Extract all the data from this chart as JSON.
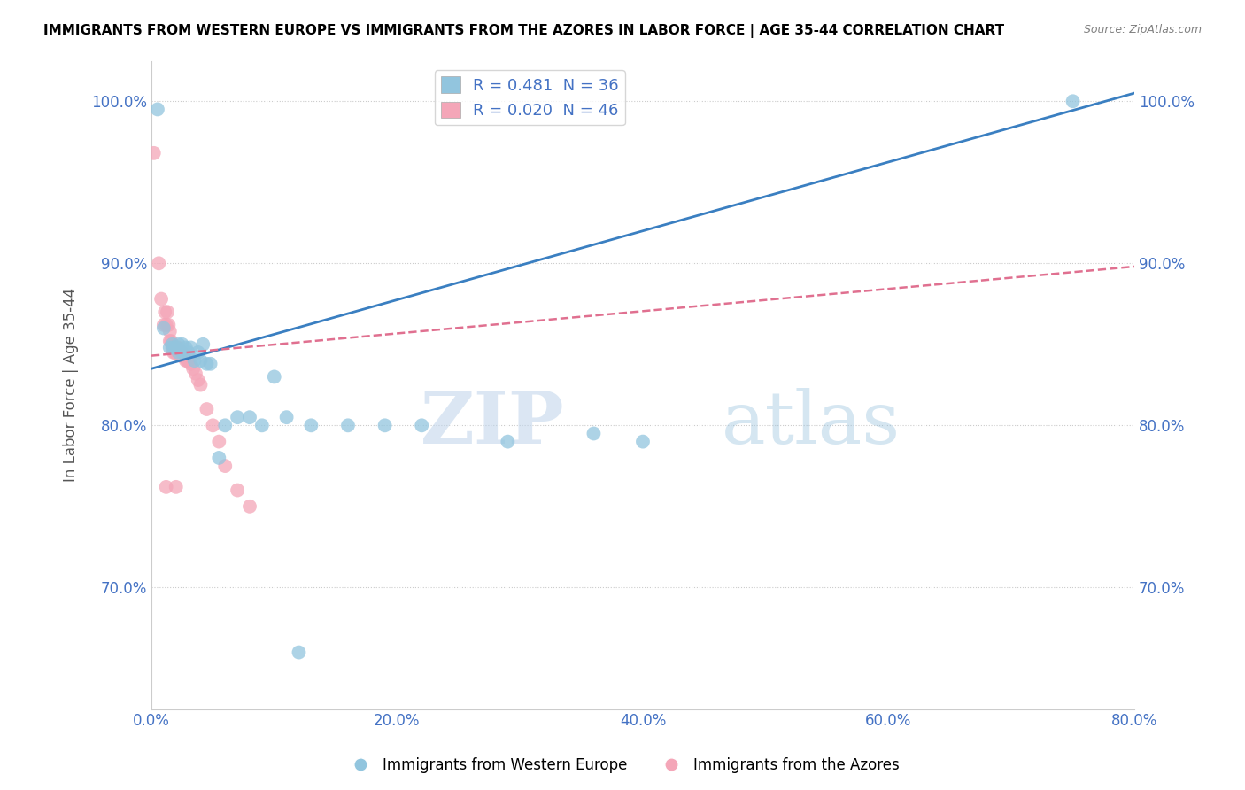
{
  "title": "IMMIGRANTS FROM WESTERN EUROPE VS IMMIGRANTS FROM THE AZORES IN LABOR FORCE | AGE 35-44 CORRELATION CHART",
  "source": "Source: ZipAtlas.com",
  "xlabel": "",
  "ylabel": "In Labor Force | Age 35-44",
  "xlim": [
    0.0,
    0.8
  ],
  "ylim": [
    0.625,
    1.025
  ],
  "xticks": [
    0.0,
    0.2,
    0.4,
    0.6,
    0.8
  ],
  "xtick_labels": [
    "0.0%",
    "20.0%",
    "40.0%",
    "60.0%",
    "80.0%"
  ],
  "yticks": [
    0.7,
    0.8,
    0.9,
    1.0
  ],
  "ytick_labels": [
    "70.0%",
    "80.0%",
    "90.0%",
    "100.0%"
  ],
  "blue_R": 0.481,
  "blue_N": 36,
  "pink_R": 0.02,
  "pink_N": 46,
  "blue_color": "#92c5de",
  "pink_color": "#f4a6b8",
  "blue_line_color": "#3a7fc1",
  "pink_line_color": "#e07090",
  "watermark_zip": "ZIP",
  "watermark_atlas": "atlas",
  "blue_line_x0": 0.0,
  "blue_line_y0": 0.835,
  "blue_line_x1": 0.8,
  "blue_line_y1": 1.005,
  "pink_line_x0": 0.0,
  "pink_line_y0": 0.843,
  "pink_line_x1": 0.8,
  "pink_line_y1": 0.898,
  "blue_scatter_x": [
    0.005,
    0.01,
    0.015,
    0.017,
    0.018,
    0.02,
    0.022,
    0.022,
    0.025,
    0.025,
    0.027,
    0.028,
    0.03,
    0.032,
    0.035,
    0.038,
    0.04,
    0.042,
    0.045,
    0.048,
    0.055,
    0.06,
    0.07,
    0.08,
    0.09,
    0.1,
    0.11,
    0.13,
    0.16,
    0.19,
    0.22,
    0.29,
    0.36,
    0.4,
    0.75,
    0.12
  ],
  "blue_scatter_y": [
    0.995,
    0.86,
    0.848,
    0.85,
    0.848,
    0.848,
    0.845,
    0.85,
    0.845,
    0.85,
    0.845,
    0.848,
    0.845,
    0.848,
    0.84,
    0.845,
    0.84,
    0.85,
    0.838,
    0.838,
    0.78,
    0.8,
    0.805,
    0.805,
    0.8,
    0.83,
    0.805,
    0.8,
    0.8,
    0.8,
    0.8,
    0.79,
    0.795,
    0.79,
    1.0,
    0.66
  ],
  "pink_scatter_x": [
    0.002,
    0.006,
    0.008,
    0.01,
    0.011,
    0.012,
    0.013,
    0.014,
    0.015,
    0.015,
    0.016,
    0.017,
    0.017,
    0.018,
    0.018,
    0.019,
    0.019,
    0.02,
    0.02,
    0.021,
    0.021,
    0.022,
    0.022,
    0.023,
    0.023,
    0.024,
    0.025,
    0.025,
    0.026,
    0.027,
    0.028,
    0.029,
    0.03,
    0.032,
    0.034,
    0.036,
    0.038,
    0.04,
    0.045,
    0.05,
    0.055,
    0.06,
    0.07,
    0.08,
    0.012,
    0.02
  ],
  "pink_scatter_y": [
    0.968,
    0.9,
    0.878,
    0.862,
    0.87,
    0.862,
    0.87,
    0.862,
    0.858,
    0.852,
    0.852,
    0.848,
    0.85,
    0.848,
    0.845,
    0.848,
    0.845,
    0.848,
    0.845,
    0.845,
    0.848,
    0.845,
    0.848,
    0.845,
    0.845,
    0.843,
    0.843,
    0.845,
    0.843,
    0.843,
    0.84,
    0.84,
    0.84,
    0.838,
    0.835,
    0.832,
    0.828,
    0.825,
    0.81,
    0.8,
    0.79,
    0.775,
    0.76,
    0.75,
    0.762,
    0.762
  ]
}
